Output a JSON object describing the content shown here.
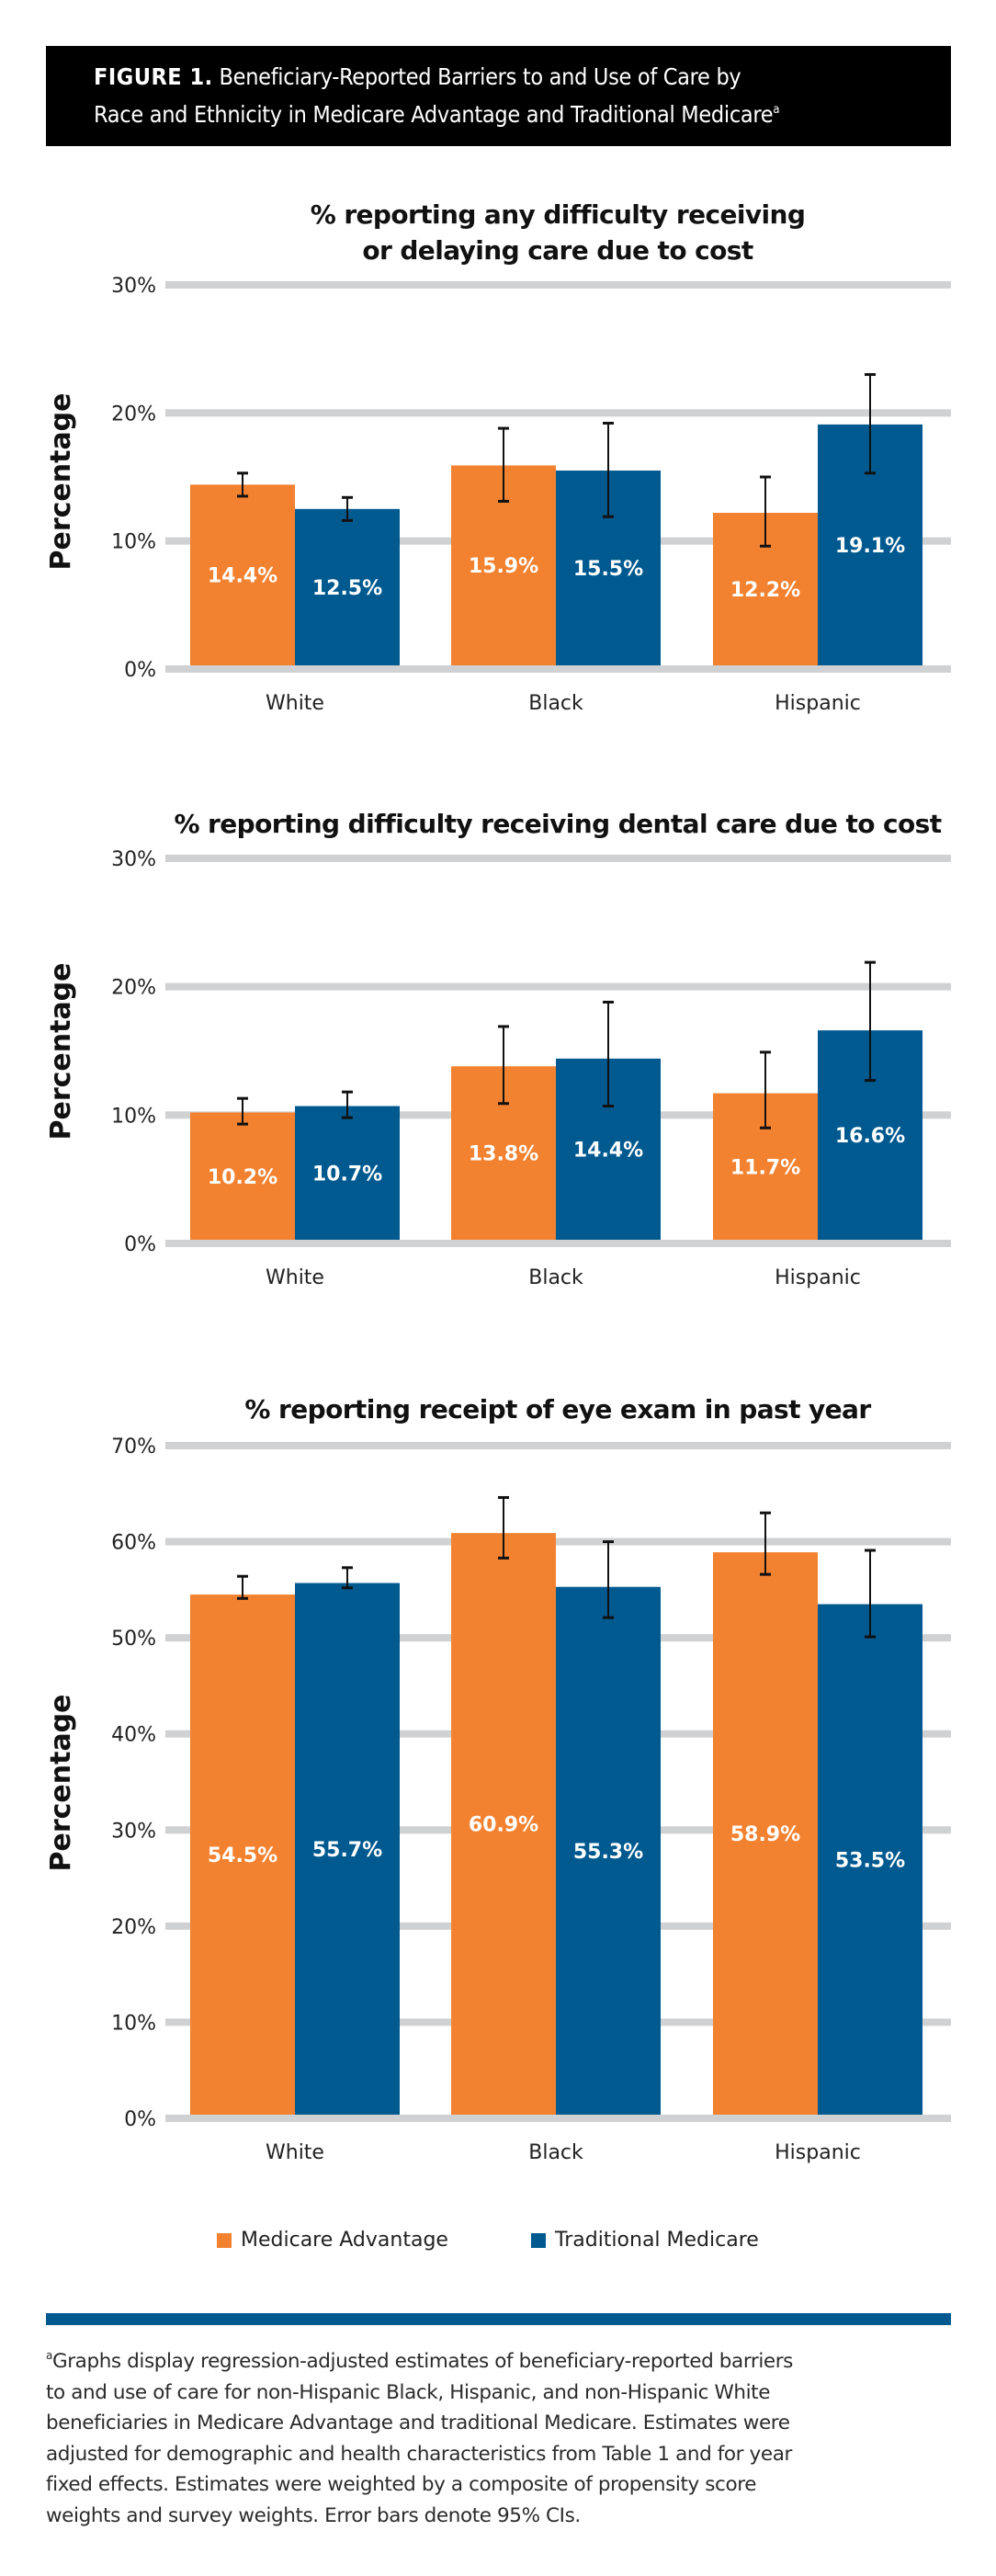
{
  "header": {
    "figure_label": "FIGURE 1.",
    "title": "Beneficiary-Reported Barriers to and Use of Care by Race and Ethnicity in Medicare Advantage and Traditional Medicare",
    "title_line1": "Beneficiary-Reported Barriers to and Use of Care by",
    "title_line2": "Race and Ethnicity in Medicare Advantage and Traditional Medicare",
    "footnote_marker": "a"
  },
  "colors": {
    "medicare_advantage": "#F38230",
    "traditional_medicare": "#00598F",
    "gridline": "#D0D1D3",
    "error_bar": "#111111"
  },
  "legend": {
    "placement": "bottom-center",
    "items": [
      {
        "label": "Medicare Advantage",
        "color": "#F38230"
      },
      {
        "label": "Traditional Medicare",
        "color": "#00598F"
      }
    ]
  },
  "chart_data": [
    {
      "type": "bar",
      "title": "% reporting any difficulty receiving or delaying care due to cost",
      "title_lines": [
        "% reporting any difficulty receiving",
        "or delaying care due to cost"
      ],
      "xlabel": "",
      "ylabel": "Percentage",
      "ylim": [
        0,
        30
      ],
      "yticks": [
        0,
        10,
        20,
        30
      ],
      "ytick_labels": [
        "0%",
        "10%",
        "20%",
        "30%"
      ],
      "grid": true,
      "categories": [
        "White",
        "Black",
        "Hispanic"
      ],
      "series": [
        {
          "name": "Medicare Advantage",
          "values": [
            14.4,
            15.9,
            12.2
          ],
          "labels": [
            "14.4%",
            "15.9%",
            "12.2%"
          ],
          "ci_low": [
            13.5,
            13.1,
            9.6
          ],
          "ci_high": [
            15.3,
            18.8,
            15.0
          ]
        },
        {
          "name": "Traditional Medicare",
          "values": [
            12.5,
            15.5,
            19.1
          ],
          "labels": [
            "12.5%",
            "15.5%",
            "19.1%"
          ],
          "ci_low": [
            11.6,
            11.9,
            15.3
          ],
          "ci_high": [
            13.4,
            19.2,
            23.0
          ]
        }
      ]
    },
    {
      "type": "bar",
      "title": "% reporting difficulty receiving dental care due to cost",
      "title_lines": [
        "% reporting difficulty receiving dental care due to cost"
      ],
      "xlabel": "",
      "ylabel": "Percentage",
      "ylim": [
        0,
        30
      ],
      "yticks": [
        0,
        10,
        20,
        30
      ],
      "ytick_labels": [
        "0%",
        "10%",
        "20%",
        "30%"
      ],
      "grid": true,
      "categories": [
        "White",
        "Black",
        "Hispanic"
      ],
      "series": [
        {
          "name": "Medicare Advantage",
          "values": [
            10.2,
            13.8,
            11.7
          ],
          "labels": [
            "10.2%",
            "13.8%",
            "11.7%"
          ],
          "ci_low": [
            9.3,
            10.9,
            9.0
          ],
          "ci_high": [
            11.3,
            16.9,
            14.9
          ]
        },
        {
          "name": "Traditional Medicare",
          "values": [
            10.7,
            14.4,
            16.6
          ],
          "labels": [
            "10.7%",
            "14.4%",
            "16.6%"
          ],
          "ci_low": [
            9.8,
            10.7,
            12.7
          ],
          "ci_high": [
            11.8,
            18.8,
            21.9
          ]
        }
      ]
    },
    {
      "type": "bar",
      "title": "% reporting receipt of eye exam in past year",
      "title_lines": [
        "% reporting receipt of eye exam in past year"
      ],
      "xlabel": "",
      "ylabel": "Percentage",
      "ylim": [
        0,
        70
      ],
      "yticks": [
        0,
        10,
        20,
        30,
        40,
        50,
        60,
        70
      ],
      "ytick_labels": [
        "0%",
        "10%",
        "20%",
        "30%",
        "40%",
        "50%",
        "60%",
        "70%"
      ],
      "grid": true,
      "categories": [
        "White",
        "Black",
        "Hispanic"
      ],
      "series": [
        {
          "name": "Medicare Advantage",
          "values": [
            54.5,
            60.9,
            58.9
          ],
          "labels": [
            "54.5%",
            "60.9%",
            "58.9%"
          ],
          "ci_low": [
            54.1,
            58.3,
            56.6
          ],
          "ci_high": [
            56.4,
            64.6,
            63.0
          ]
        },
        {
          "name": "Traditional Medicare",
          "values": [
            55.7,
            55.3,
            53.5
          ],
          "labels": [
            "55.7%",
            "55.3%",
            "53.5%"
          ],
          "ci_low": [
            55.2,
            52.1,
            50.1
          ],
          "ci_high": [
            57.3,
            60.0,
            59.1
          ]
        }
      ]
    }
  ],
  "footnote": {
    "marker": "a",
    "lines": [
      "Graphs display regression-adjusted estimates of beneficiary-reported barriers",
      "to and use of care for non-Hispanic Black, Hispanic, and non-Hispanic White",
      "beneficiaries in Medicare Advantage and traditional Medicare. Estimates were",
      "adjusted for demographic and health characteristics from Table 1 and for year",
      "fixed effects. Estimates were weighted by a composite of propensity score",
      "weights and survey weights. Error bars denote 95% CIs."
    ]
  }
}
